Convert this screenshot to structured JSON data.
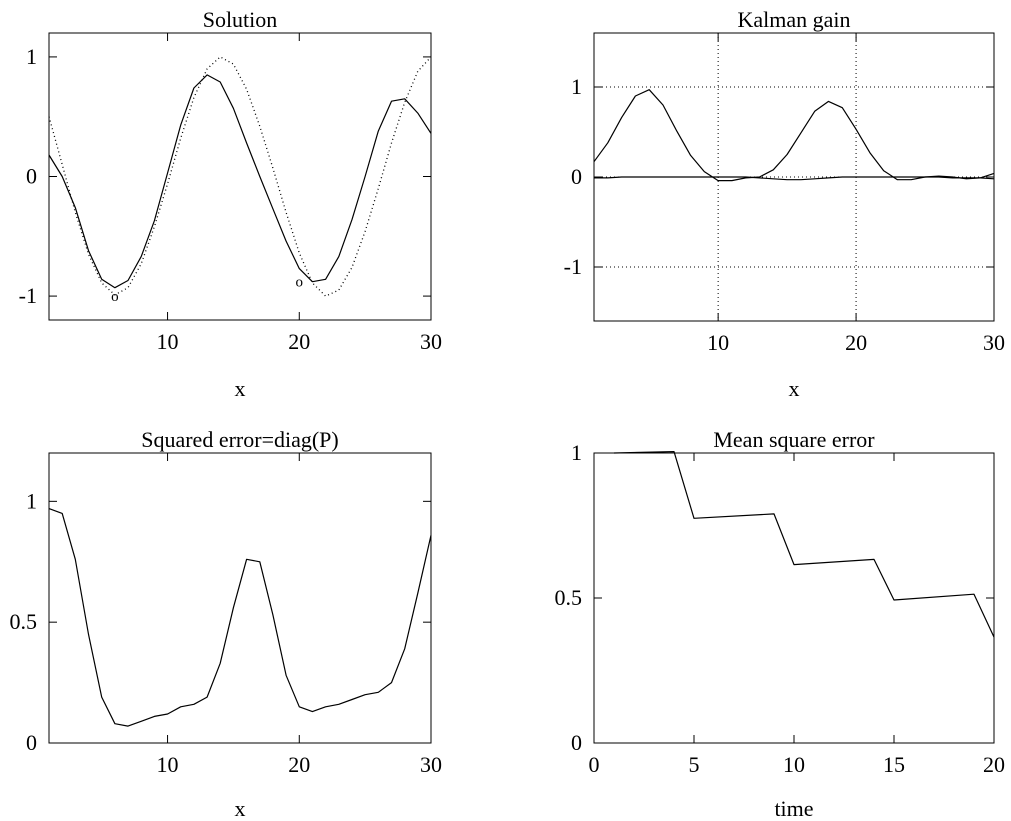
{
  "chart_data": [
    {
      "type": "line",
      "title": "Solution",
      "xlabel": "x",
      "ylabel": "",
      "xlim": [
        1,
        30
      ],
      "ylim": [
        -1.2,
        1.2
      ],
      "xticks": [
        10,
        20,
        30
      ],
      "yticks": [
        -1,
        0,
        1
      ],
      "xtick_labels": [
        "10",
        "20",
        "30"
      ],
      "ytick_labels": [
        "-1",
        "0",
        "1"
      ],
      "grid": false,
      "series": [
        {
          "style": "solid",
          "x": [
            1,
            2,
            3,
            4,
            5,
            6,
            7,
            8,
            9,
            10,
            11,
            12,
            13,
            14,
            15,
            16,
            17,
            18,
            19,
            20,
            21,
            22,
            23,
            24,
            25,
            26,
            27,
            28,
            29,
            30
          ],
          "values": [
            0.18,
            0.0,
            -0.26,
            -0.62,
            -0.86,
            -0.93,
            -0.87,
            -0.67,
            -0.37,
            0.03,
            0.43,
            0.74,
            0.85,
            0.79,
            0.57,
            0.28,
            0.0,
            -0.27,
            -0.54,
            -0.77,
            -0.88,
            -0.86,
            -0.67,
            -0.36,
            0.0,
            0.38,
            0.63,
            0.65,
            0.53,
            0.36
          ]
        },
        {
          "style": "dotted",
          "x": [
            1,
            2,
            3,
            4,
            5,
            6,
            7,
            8,
            9,
            10,
            11,
            12,
            13,
            14,
            15,
            16,
            17,
            18,
            19,
            20,
            21,
            22,
            23,
            24,
            25,
            26,
            27,
            28,
            29,
            30
          ],
          "values": [
            0.5,
            0.1,
            -0.3,
            -0.65,
            -0.89,
            -0.99,
            -0.93,
            -0.73,
            -0.42,
            -0.06,
            0.32,
            0.66,
            0.9,
            1.0,
            0.94,
            0.73,
            0.42,
            0.07,
            -0.3,
            -0.64,
            -0.89,
            -1.0,
            -0.95,
            -0.76,
            -0.46,
            -0.1,
            0.28,
            0.62,
            0.88,
            1.0
          ]
        }
      ],
      "markers": [
        {
          "symbol": "o",
          "x": 6,
          "y": -1.0
        },
        {
          "symbol": "o",
          "x": 20,
          "y": -0.88
        }
      ]
    },
    {
      "type": "line",
      "title": "Kalman gain",
      "xlabel": "x",
      "ylabel": "",
      "xlim": [
        1,
        30
      ],
      "ylim": [
        -1.6,
        1.6
      ],
      "xticks": [
        10,
        20,
        30
      ],
      "yticks": [
        -1,
        0,
        1
      ],
      "xtick_labels": [
        "10",
        "20",
        "30"
      ],
      "ytick_labels": [
        "-1",
        "0",
        "1"
      ],
      "grid": true,
      "series": [
        {
          "style": "solid",
          "x": [
            1,
            2,
            3,
            4,
            5,
            6,
            7,
            8,
            9,
            10,
            11,
            12,
            13,
            14,
            15,
            16,
            17,
            18,
            19,
            20,
            21,
            22,
            23,
            24,
            25,
            26,
            27,
            28,
            29,
            30
          ],
          "values": [
            0.17,
            0.38,
            0.66,
            0.9,
            0.97,
            0.8,
            0.51,
            0.24,
            0.06,
            -0.04,
            -0.04,
            -0.01,
            0.0,
            0.08,
            0.25,
            0.49,
            0.73,
            0.84,
            0.77,
            0.53,
            0.27,
            0.07,
            -0.03,
            -0.03,
            0.0,
            0.01,
            0.0,
            -0.02,
            -0.01,
            0.04
          ]
        },
        {
          "style": "solid",
          "x": [
            1,
            2,
            3,
            4,
            5,
            6,
            7,
            8,
            9,
            10,
            11,
            12,
            13,
            14,
            15,
            16,
            17,
            18,
            19,
            20,
            21,
            22,
            23,
            24,
            25,
            26,
            27,
            28,
            29,
            30
          ],
          "values": [
            -0.01,
            -0.01,
            0.0,
            0.0,
            0.0,
            0.0,
            0.0,
            0.0,
            0.0,
            0.0,
            0.0,
            0.0,
            -0.01,
            -0.02,
            -0.03,
            -0.03,
            -0.02,
            -0.01,
            0.0,
            0.0,
            0.0,
            0.0,
            0.0,
            0.0,
            0.0,
            0.0,
            -0.01,
            -0.01,
            -0.01,
            -0.02
          ]
        }
      ]
    },
    {
      "type": "line",
      "title": "Squared error=diag(P)",
      "xlabel": "x",
      "ylabel": "",
      "xlim": [
        1,
        30
      ],
      "ylim": [
        0,
        1.2
      ],
      "xticks": [
        10,
        20,
        30
      ],
      "yticks": [
        0,
        0.5,
        1
      ],
      "xtick_labels": [
        "10",
        "20",
        "30"
      ],
      "ytick_labels": [
        "0",
        "0.5",
        "1"
      ],
      "grid": false,
      "series": [
        {
          "style": "solid",
          "x": [
            1,
            2,
            3,
            4,
            5,
            6,
            7,
            8,
            9,
            10,
            11,
            12,
            13,
            14,
            15,
            16,
            17,
            18,
            19,
            20,
            21,
            22,
            23,
            24,
            25,
            26,
            27,
            28,
            29,
            30
          ],
          "values": [
            0.97,
            0.95,
            0.76,
            0.45,
            0.19,
            0.08,
            0.07,
            0.09,
            0.11,
            0.12,
            0.15,
            0.16,
            0.19,
            0.33,
            0.56,
            0.76,
            0.75,
            0.53,
            0.28,
            0.15,
            0.13,
            0.15,
            0.16,
            0.18,
            0.2,
            0.21,
            0.25,
            0.39,
            0.62,
            0.86
          ]
        }
      ]
    },
    {
      "type": "line",
      "title": "Mean square error",
      "xlabel": "time",
      "ylabel": "",
      "xlim": [
        0,
        20
      ],
      "ylim": [
        0,
        1
      ],
      "xticks": [
        0,
        5,
        10,
        15,
        20
      ],
      "yticks": [
        0,
        0.5,
        1
      ],
      "xtick_labels": [
        "0",
        "5",
        "10",
        "15",
        "20"
      ],
      "ytick_labels": [
        "0",
        "0.5",
        "1"
      ],
      "grid": false,
      "series": [
        {
          "style": "solid",
          "x": [
            1,
            4,
            5,
            9,
            10,
            14,
            15,
            19,
            20
          ],
          "values": [
            1.0,
            1.005,
            0.775,
            0.79,
            0.615,
            0.633,
            0.493,
            0.513,
            0.365
          ]
        }
      ]
    }
  ]
}
